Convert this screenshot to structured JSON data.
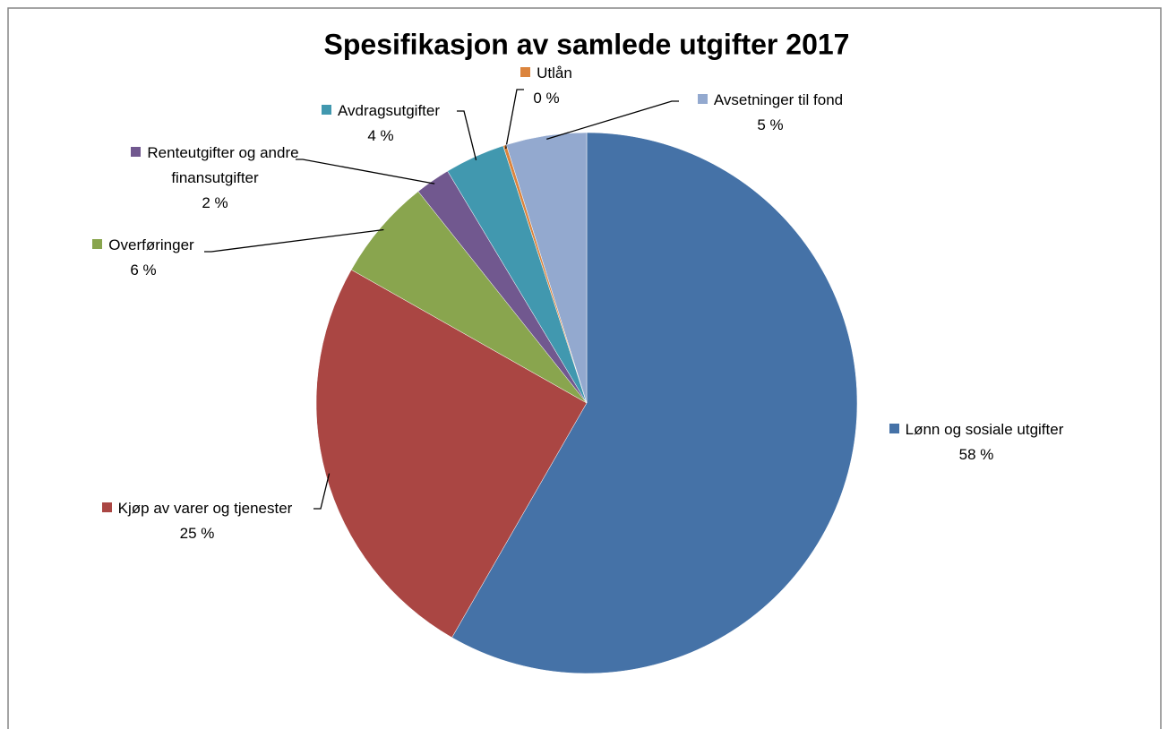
{
  "chart_data": {
    "type": "pie",
    "title": "Spesifikasjon av samlede utgifter 2017",
    "categories": [
      "Lønn og sosiale utgifter",
      "Kjøp av varer og tjenester",
      "Overføringer",
      "Renteutgifter og andre finansutgifter",
      "Avdragsutgifter",
      "Utlån",
      "Avsetninger til fond"
    ],
    "values": [
      58.3,
      24.9,
      6.1,
      2.1,
      3.6,
      0.2,
      4.8
    ],
    "value_labels": [
      "58 %",
      "25 %",
      "6 %",
      "2 %",
      "4 %",
      "0 %",
      "5 %"
    ],
    "colors": [
      "#4572a7",
      "#aa4643",
      "#89a54e",
      "#71588f",
      "#4198af",
      "#db843d",
      "#93a9cf"
    ]
  }
}
